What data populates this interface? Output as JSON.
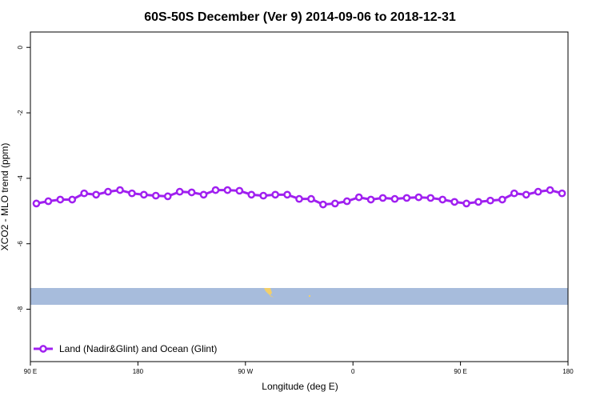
{
  "chart_data": {
    "type": "line",
    "title": "60S-50S December (Ver 9)   2014-09-06 to 2018-12-31",
    "x_label": "Longitude (deg E)",
    "y_label": "XCO2 - MLO trend (ppm)",
    "x": [
      95,
      105,
      115,
      125,
      135,
      145,
      155,
      165,
      175,
      185,
      195,
      205,
      215,
      225,
      235,
      245,
      255,
      265,
      275,
      285,
      295,
      305,
      315,
      325,
      335,
      345,
      355,
      365,
      375,
      385,
      395,
      405,
      415,
      425,
      435,
      445,
      455,
      465,
      475,
      485,
      495,
      505,
      515,
      525,
      535
    ],
    "series": [
      {
        "name": "Land (Nadir&Glint) and Ocean (Glint)",
        "color": "#a020f0",
        "values": [
          -4.77,
          -4.7,
          -4.65,
          -4.65,
          -4.46,
          -4.5,
          -4.41,
          -4.36,
          -4.46,
          -4.5,
          -4.53,
          -4.55,
          -4.41,
          -4.43,
          -4.5,
          -4.36,
          -4.36,
          -4.38,
          -4.5,
          -4.53,
          -4.5,
          -4.5,
          -4.63,
          -4.63,
          -4.8,
          -4.77,
          -4.7,
          -4.58,
          -4.65,
          -4.6,
          -4.63,
          -4.6,
          -4.58,
          -4.6,
          -4.65,
          -4.72,
          -4.77,
          -4.72,
          -4.68,
          -4.65,
          -4.46,
          -4.5,
          -4.41,
          -4.36,
          -4.46
        ]
      }
    ],
    "xlim": [
      90,
      540
    ],
    "xticks": [
      {
        "value": 90,
        "label": "90 E"
      },
      180,
      {
        "value": 270,
        "label": "90 W"
      },
      {
        "value": 360,
        "label": "0"
      },
      {
        "value": 450,
        "label": "90 E"
      },
      {
        "value": 540,
        "label": "180"
      }
    ],
    "ylim": [
      -9.6,
      0.47
    ],
    "yticks": [
      0,
      -2,
      -4,
      -6,
      -8
    ],
    "legend": "bottom-left"
  }
}
